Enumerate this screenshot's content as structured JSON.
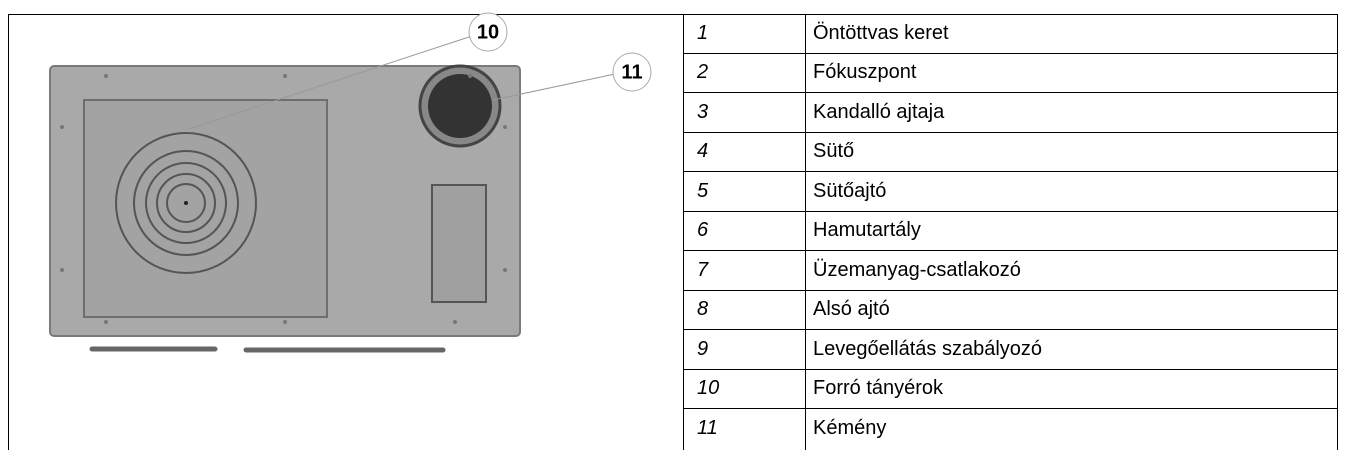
{
  "figure": {
    "callouts": [
      "10",
      "11"
    ]
  },
  "table": {
    "rows": [
      [
        "1",
        "Öntöttvas keret"
      ],
      [
        "2",
        "Fókuszpont"
      ],
      [
        "3",
        "Kandalló ajtaja"
      ],
      [
        "4",
        "Sütő"
      ],
      [
        "5",
        "Sütőajtó"
      ],
      [
        "6",
        "Hamutartály"
      ],
      [
        "7",
        "Üzemanyag-csatlakozó"
      ],
      [
        "8",
        "Alsó ajtó"
      ],
      [
        "9",
        "Levegőellátás szabályozó"
      ],
      [
        "10",
        "Forró tányérok"
      ],
      [
        "11",
        "Kémény"
      ]
    ]
  }
}
